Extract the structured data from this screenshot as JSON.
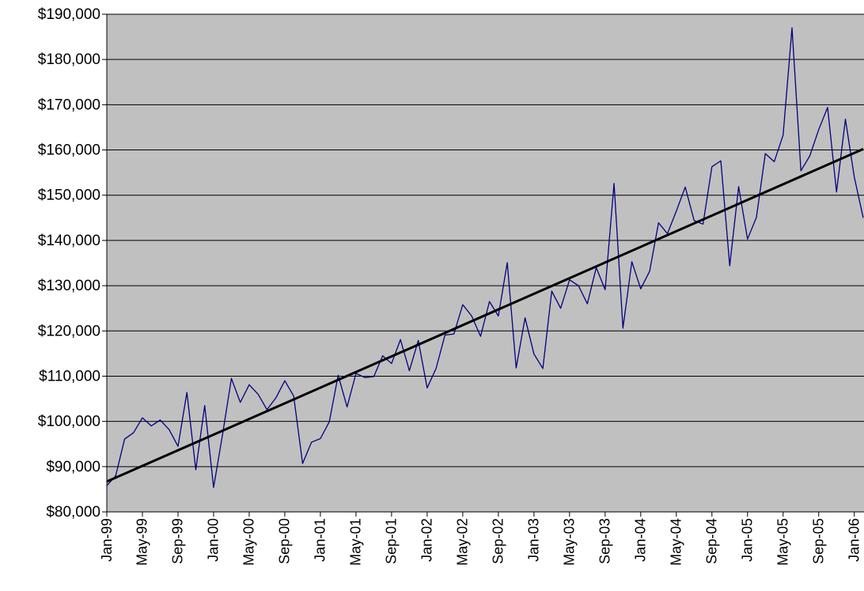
{
  "chart_data": {
    "type": "line",
    "categories": [
      "Jan-99",
      null,
      null,
      null,
      "May-99",
      null,
      null,
      null,
      "Sep-99",
      null,
      null,
      null,
      "Jan-00",
      null,
      null,
      null,
      "May-00",
      null,
      null,
      null,
      "Sep-00",
      null,
      null,
      null,
      "Jan-01",
      null,
      null,
      null,
      "May-01",
      null,
      null,
      null,
      "Sep-01",
      null,
      null,
      null,
      "Jan-02",
      null,
      null,
      null,
      "May-02",
      null,
      null,
      null,
      "Sep-02",
      null,
      null,
      null,
      "Jan-03",
      null,
      null,
      null,
      "May-03",
      null,
      null,
      null,
      "Sep-03",
      null,
      null,
      null,
      "Jan-04",
      null,
      null,
      null,
      "May-04",
      null,
      null,
      null,
      "Sep-04",
      null,
      null,
      null,
      "Jan-05",
      null,
      null,
      null,
      "May-05",
      null,
      null,
      null,
      "Sep-05",
      null,
      null,
      null,
      "Jan-06",
      null
    ],
    "series": [
      {
        "color": "#000080",
        "values": [
          85800,
          88000,
          96100,
          97500,
          100800,
          99000,
          100300,
          98200,
          94500,
          106400,
          89300,
          103500,
          85400,
          97000,
          109500,
          104200,
          108100,
          106000,
          102600,
          105200,
          109000,
          105600,
          90700,
          95400,
          96200,
          99900,
          110200,
          103200,
          110600,
          109700,
          109900,
          114500,
          112800,
          118100,
          111200,
          117900,
          107400,
          111700,
          119100,
          119300,
          125800,
          123300,
          118800,
          126500,
          123300,
          135100,
          111800,
          122900,
          114900,
          111700,
          128800,
          125000,
          131300,
          130000,
          126000,
          134000,
          129100,
          152600,
          120600,
          135300,
          129300,
          133200,
          143900,
          141500,
          146500,
          151800,
          144400,
          143600,
          156300,
          157600,
          134400,
          151900,
          140300,
          145100,
          159200,
          157400,
          163300,
          187000,
          155400,
          158700,
          164500,
          169400,
          150700,
          166800,
          154000,
          145000
        ]
      }
    ],
    "trendline": {
      "color": "#000000",
      "start": 86700,
      "end": 160200
    },
    "ylim": [
      80000,
      190000
    ],
    "yticks": [
      {
        "value": 80000,
        "label": "$80,000"
      },
      {
        "value": 90000,
        "label": "$90,000"
      },
      {
        "value": 100000,
        "label": "$100,000"
      },
      {
        "value": 110000,
        "label": "$110,000"
      },
      {
        "value": 120000,
        "label": "$120,000"
      },
      {
        "value": 130000,
        "label": "$130,000"
      },
      {
        "value": 140000,
        "label": "$140,000"
      },
      {
        "value": 150000,
        "label": "$150,000"
      },
      {
        "value": 160000,
        "label": "$160,000"
      },
      {
        "value": 170000,
        "label": "$170,000"
      },
      {
        "value": 180000,
        "label": "$180,000"
      },
      {
        "value": 190000,
        "label": "$190,000"
      }
    ],
    "grid": true,
    "plot_background": "#c0c0c0"
  }
}
